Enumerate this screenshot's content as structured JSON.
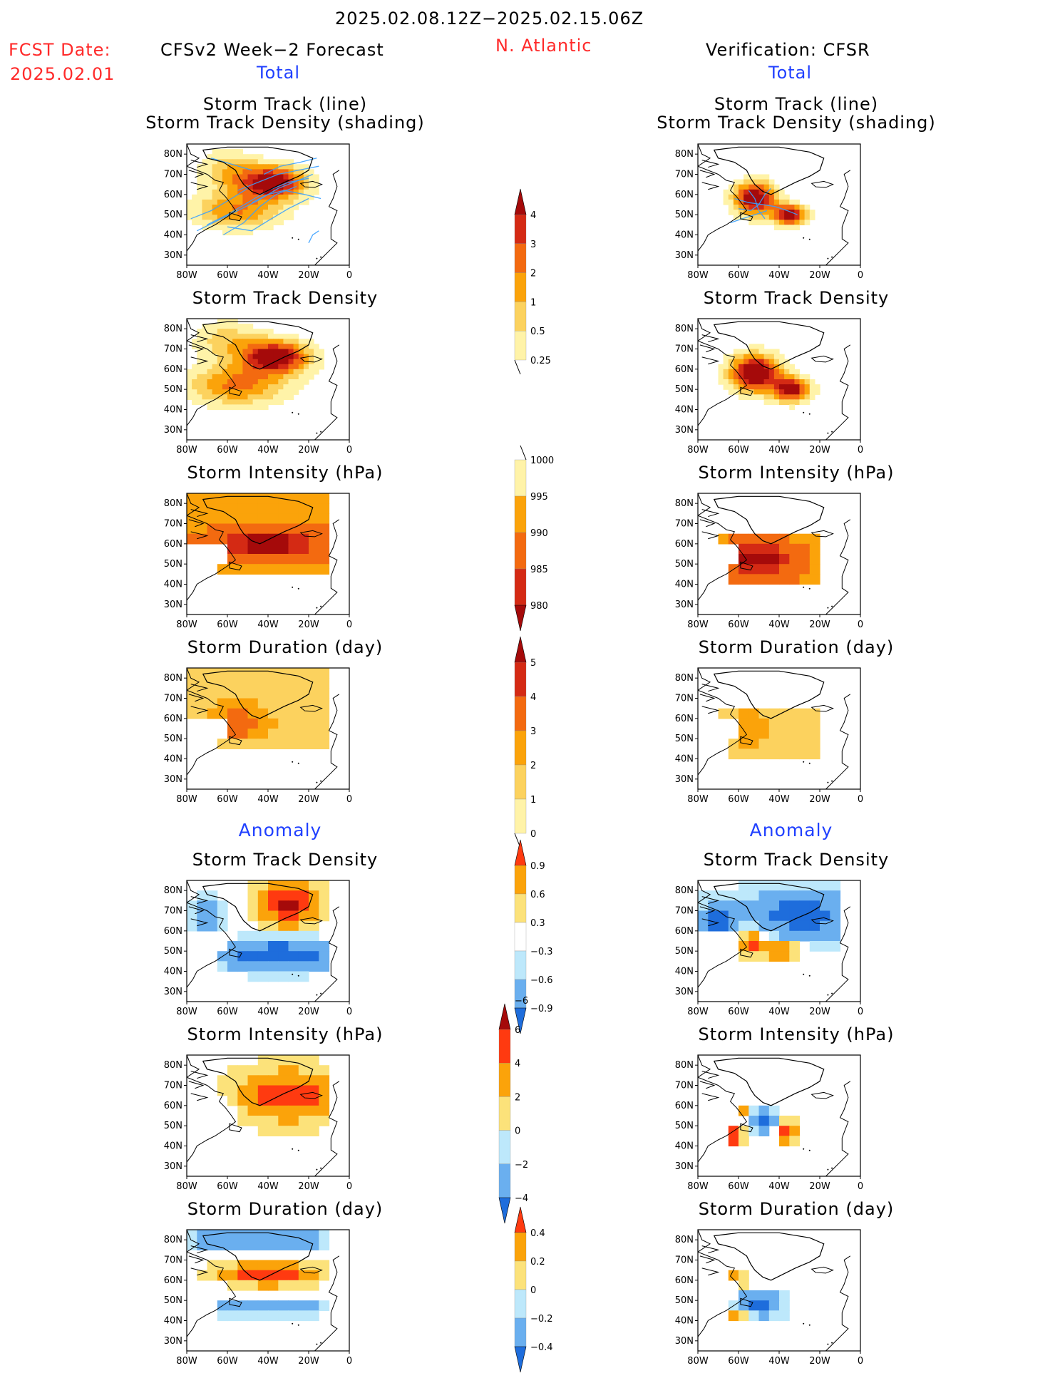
{
  "header": {
    "date_range": "2025.02.08.12Z−2025.02.15.06Z",
    "fcst_label": "FCST Date:",
    "fcst_date": "2025.02.01",
    "left_title": "CFSv2 Week−2 Forecast",
    "region": "N. Atlantic",
    "right_title": "Verification: CFSR",
    "left_total": "Total",
    "right_total": "Total",
    "left_anomaly": "Anomaly",
    "right_anomaly": "Anomaly"
  },
  "panel_titles": {
    "track_line": "Storm Track (line)",
    "track_shading": "Storm Track Density (shading)",
    "density": "Storm Track Density",
    "intensity": "Storm Intensity (hPa)",
    "duration": "Storm Duration (day)"
  },
  "map_axes": {
    "lat_labels": [
      "80N",
      "70N",
      "60N",
      "50N",
      "40N",
      "30N"
    ],
    "lon_labels": [
      "80W",
      "60W",
      "40W",
      "20W",
      "0"
    ]
  },
  "colorbars": {
    "density_total": {
      "labels": [
        "4",
        "3",
        "2",
        "1",
        "0.5",
        "0.25"
      ],
      "colors": [
        "#a50a0a",
        "#d42a14",
        "#f36a10",
        "#fba30a",
        "#fcd25e",
        "#fff3a8"
      ]
    },
    "intensity_total": {
      "labels": [
        "1000",
        "995",
        "990",
        "985",
        "980"
      ],
      "colors": [
        "#fff3a8",
        "#fba30a",
        "#f36a10",
        "#d42a14",
        "#a50a0a"
      ]
    },
    "duration_total": {
      "labels": [
        "5",
        "4",
        "3",
        "2",
        "1",
        "0"
      ],
      "colors": [
        "#a50a0a",
        "#d42a14",
        "#f36a10",
        "#fba30a",
        "#fcd25e",
        "#fff3a8"
      ]
    },
    "density_anom": {
      "labels": [
        "0.9",
        "0.6",
        "0.3",
        "−0.3",
        "−0.6",
        "−0.9"
      ],
      "colors": [
        "#ff3a10",
        "#fba30a",
        "#fce27a",
        "#ffffff",
        "#bde8fb",
        "#6aafef",
        "#1e6ddc"
      ]
    },
    "intensity_anom": {
      "labels": [
        "6",
        "4",
        "2",
        "0",
        "−2",
        "−4",
        "−6"
      ],
      "colors": [
        "#a50a0a",
        "#ff3a10",
        "#fba30a",
        "#fce27a",
        "#bde8fb",
        "#6aafef",
        "#1e6ddc"
      ]
    },
    "duration_anom": {
      "labels": [
        "0.4",
        "0.2",
        "0",
        "−0.2",
        "−0.4"
      ],
      "colors": [
        "#ff3a10",
        "#fba30a",
        "#fce27a",
        "#bde8fb",
        "#6aafef",
        "#1e6ddc"
      ]
    }
  },
  "palette": {
    "track_line": "#3aa0ff",
    "coast": "#000000"
  }
}
